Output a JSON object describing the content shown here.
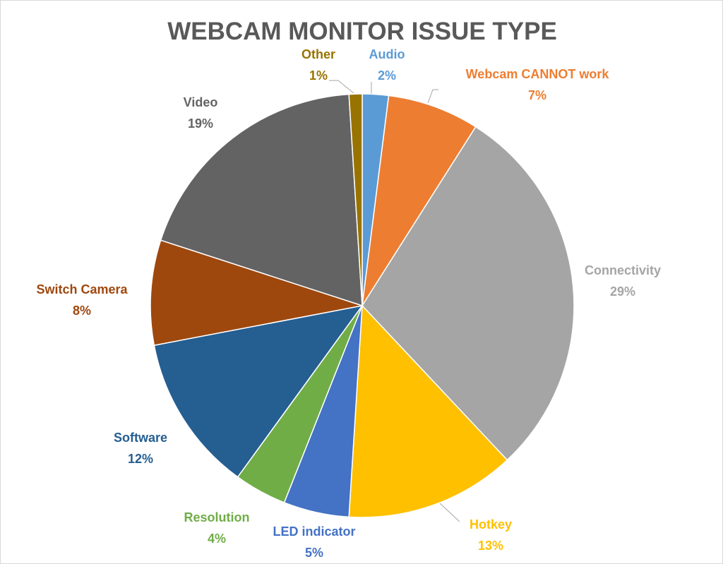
{
  "chart_data": {
    "type": "pie",
    "title": "WEBCAM MONITOR ISSUE TYPE",
    "legend": "none",
    "slices": [
      {
        "name": "Audio",
        "value": 2,
        "label": "2%",
        "color": "#5b9bd5"
      },
      {
        "name": "Webcam CANNOT work",
        "value": 7,
        "label": "7%",
        "color": "#ed7d31"
      },
      {
        "name": "Connectivity",
        "value": 29,
        "label": "29%",
        "color": "#a5a5a5"
      },
      {
        "name": "Hotkey",
        "value": 13,
        "label": "13%",
        "color": "#ffc000"
      },
      {
        "name": "LED indicator",
        "value": 5,
        "label": "5%",
        "color": "#4472c4"
      },
      {
        "name": "Resolution",
        "value": 4,
        "label": "4%",
        "color": "#70ad47"
      },
      {
        "name": "Software",
        "value": 12,
        "label": "12%",
        "color": "#255e91"
      },
      {
        "name": "Switch Camera",
        "value": 8,
        "label": "8%",
        "color": "#9e480e"
      },
      {
        "name": "Video",
        "value": 19,
        "label": "19%",
        "color": "#636363"
      },
      {
        "name": "Other",
        "value": 1,
        "label": "1%",
        "color": "#997300"
      }
    ]
  }
}
